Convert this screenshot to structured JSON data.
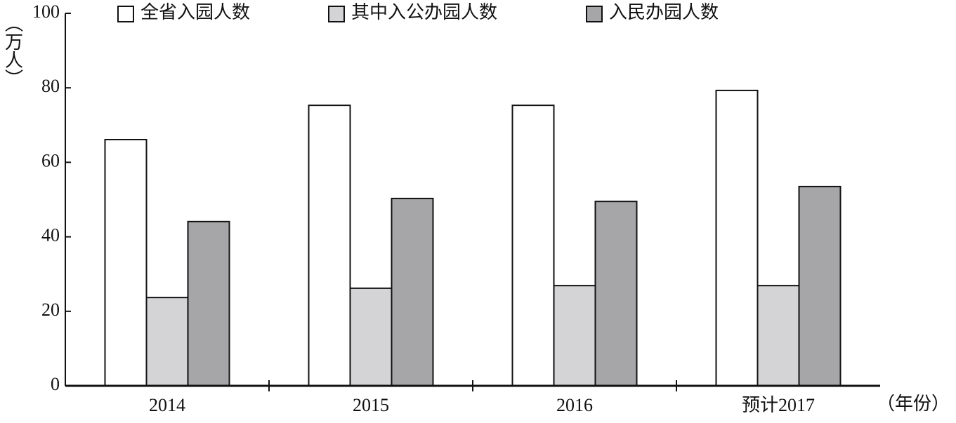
{
  "chart_data": {
    "type": "bar",
    "y_label": "（万人）",
    "x_label": "（年份）",
    "categories": [
      "2014",
      "2015",
      "2016",
      "预计2017"
    ],
    "series": [
      {
        "name": "全省入园人数",
        "color": "#ffffff",
        "values": [
          66.1,
          75.3,
          75.3,
          79.3
        ]
      },
      {
        "name": "其中入公办园人数",
        "color": "#d4d4d6",
        "values": [
          23.7,
          26.2,
          26.9,
          26.9
        ]
      },
      {
        "name": "入民办园人数",
        "color": "#a6a6a9",
        "values": [
          44.1,
          50.3,
          49.5,
          53.5
        ]
      }
    ],
    "ylim": [
      0,
      100
    ],
    "yticks": [
      0,
      20,
      40,
      60,
      80,
      100
    ],
    "grid": false,
    "legend": "top"
  }
}
